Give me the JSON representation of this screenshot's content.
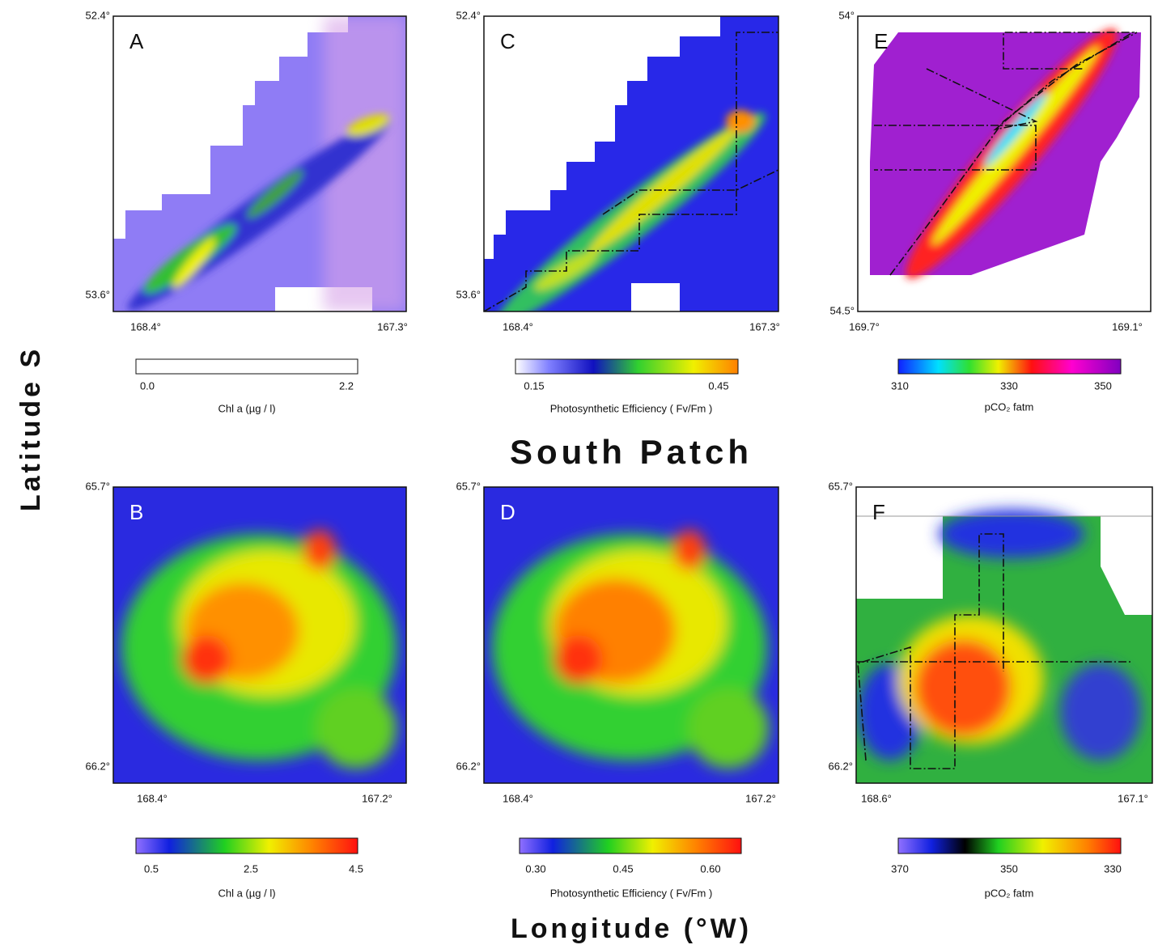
{
  "title": "South Patch",
  "y_axis_label": "Latitude S",
  "x_axis_label": "Longitude (°W)",
  "panels": [
    {
      "letter": "A",
      "lat_top": "52.4°",
      "lat_bottom": "53.6°",
      "lon_left": "168.4°",
      "lon_right": "167.3°",
      "colorbar": {
        "ticks": [
          "0.0",
          "2.2"
        ],
        "label": "Chl a   (µg / l)"
      }
    },
    {
      "letter": "C",
      "lat_top": "52.4°",
      "lat_bottom": "53.6°",
      "lon_left": "168.4°",
      "lon_right": "167.3°",
      "colorbar": {
        "ticks": [
          "0.15",
          "0.45"
        ],
        "label": "Photosynthetic Efficiency  ( Fv/Fm )"
      }
    },
    {
      "letter": "E",
      "lat_top": "54°",
      "lat_bottom": "54.5°",
      "lon_left": "169.7°",
      "lon_right": "169.1°",
      "colorbar": {
        "ticks": [
          "310",
          "330",
          "350"
        ],
        "label": "pCO₂ fatm"
      }
    },
    {
      "letter": "B",
      "lat_top": "65.7°",
      "lat_bottom": "66.2°",
      "lon_left": "168.4°",
      "lon_right": "167.2°",
      "colorbar": {
        "ticks": [
          "0.5",
          "2.5",
          "4.5"
        ],
        "label": "Chl a   (µg / l)"
      }
    },
    {
      "letter": "D",
      "lat_top": "65.7°",
      "lat_bottom": "66.2°",
      "lon_left": "168.4°",
      "lon_right": "167.2°",
      "colorbar": {
        "ticks": [
          "0.30",
          "0.45",
          "0.60"
        ],
        "label": "Photosynthetic Efficiency  ( Fv/Fm )"
      }
    },
    {
      "letter": "F",
      "lat_top": "65.7°",
      "lat_bottom": "66.2°",
      "lon_left": "168.6°",
      "lon_right": "167.1°",
      "colorbar": {
        "ticks": [
          "370",
          "350",
          "330"
        ],
        "label": "pCO₂ fatm"
      }
    }
  ]
}
